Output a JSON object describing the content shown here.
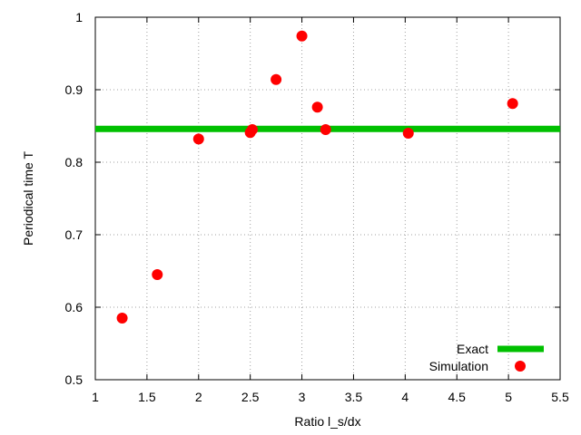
{
  "chart_data": {
    "type": "scatter",
    "xlabel": "Ratio l_s/dx",
    "ylabel": "Periodical time T",
    "xlim": [
      1,
      5.5
    ],
    "ylim": [
      0.5,
      1
    ],
    "xticks": [
      "1",
      "1.5",
      "2",
      "2.5",
      "3",
      "3.5",
      "4",
      "4.5",
      "5",
      "5.5"
    ],
    "yticks": [
      "0.5",
      "0.6",
      "0.7",
      "0.8",
      "0.9",
      "1"
    ],
    "grid": true,
    "legend_position": "bottom-right",
    "series": [
      {
        "name": "Exact",
        "kind": "line",
        "color": "#00c000",
        "x": [
          1,
          5.5
        ],
        "y": [
          0.846,
          0.846
        ]
      },
      {
        "name": "Simulation",
        "kind": "points",
        "color": "#ff0000",
        "x": [
          1.26,
          1.6,
          2.0,
          2.5,
          2.52,
          2.75,
          3.0,
          3.15,
          3.23,
          4.03,
          5.04
        ],
        "y": [
          0.585,
          0.645,
          0.832,
          0.841,
          0.845,
          0.914,
          0.974,
          0.876,
          0.845,
          0.84,
          0.881
        ]
      }
    ]
  }
}
